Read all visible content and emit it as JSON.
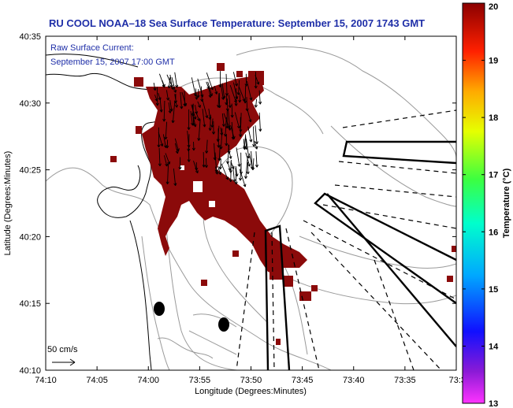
{
  "title": "RU COOL  NOAA–18  Sea Surface Temperature:  September 15, 2007 1743 GMT",
  "inset": {
    "line1": "Raw Surface Current:",
    "line2": "September 15, 2007 17:00 GMT",
    "scale_label": "50 cm/s"
  },
  "axes": {
    "xlabel": "Longitude (Degrees:Minutes)",
    "ylabel": "Latitude (Degrees:Minutes)",
    "xticks": [
      "74:10",
      "74:05",
      "74:00",
      "73:55",
      "73:50",
      "73:45",
      "73:40",
      "73:35",
      "73:3"
    ],
    "yticks": [
      "40:35",
      "40:30",
      "40:25",
      "40:20",
      "40:15",
      "40:10"
    ]
  },
  "colorbar": {
    "label": "Temperature (°C)",
    "ticks": [
      "20",
      "19",
      "18",
      "17",
      "16",
      "15",
      "14",
      "13"
    ],
    "range": [
      13,
      20
    ]
  },
  "colors": {
    "title": "#1f2fa8",
    "sst_patch": "#8b0a0a",
    "land_contours": "#000000",
    "bathymetry": "#9a9a9a"
  },
  "chart_data": {
    "type": "map",
    "x_range": [
      "74:10",
      "73:30"
    ],
    "y_range": [
      "40:10",
      "40:35"
    ],
    "sst_visible_value_c": 20
  }
}
